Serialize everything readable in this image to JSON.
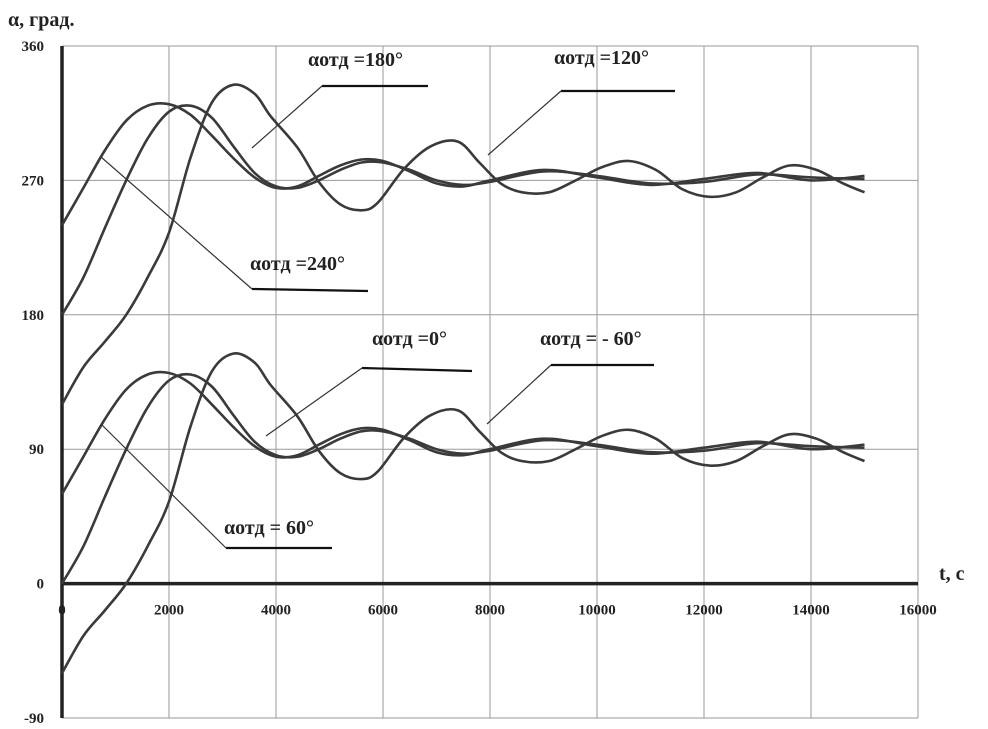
{
  "chart_data": {
    "type": "line",
    "title": "",
    "xlabel": "t, с",
    "ylabel": "α, град.",
    "xlim": [
      0,
      16000
    ],
    "ylim": [
      -90,
      360
    ],
    "xticks": [
      0,
      2000,
      4000,
      6000,
      8000,
      10000,
      12000,
      14000,
      16000
    ],
    "yticks": [
      -90,
      0,
      90,
      180,
      270,
      360
    ],
    "xtick_labels": [
      "0",
      "2000",
      "4000",
      "6000",
      "8000",
      "10000",
      "12000",
      "14000",
      "16000"
    ],
    "ytick_labels": [
      "-90",
      "0",
      "90",
      "180",
      "270",
      "360"
    ],
    "grid": true,
    "legend": "none",
    "series": [
      {
        "x": [
          0,
          400,
          800,
          1200,
          1600,
          2000,
          2400,
          2800,
          3200,
          3600,
          4000,
          4400,
          4800,
          5200,
          5600,
          6000,
          6500,
          7000,
          7500,
          8000,
          9000,
          10000,
          11000,
          12000,
          13000,
          14000,
          15000
        ],
        "y": [
          240,
          265,
          290,
          310,
          320,
          321,
          314,
          300,
          285,
          272,
          265,
          266,
          273,
          280,
          284,
          283,
          276,
          268,
          266,
          270,
          277,
          272,
          267,
          271,
          275,
          270,
          273
        ]
      },
      {
        "x": [
          0,
          400,
          800,
          1200,
          1600,
          2000,
          2400,
          2800,
          3200,
          3600,
          4000,
          4400,
          4800,
          5200,
          5600,
          6000,
          6500,
          7000,
          7500,
          8000,
          9000,
          10000,
          11000,
          12000,
          13000,
          14000,
          15000
        ],
        "y": [
          180,
          205,
          238,
          270,
          298,
          316,
          320,
          312,
          293,
          275,
          266,
          265,
          270,
          277,
          282,
          282,
          277,
          270,
          267,
          269,
          276,
          273,
          268,
          269,
          274,
          272,
          271
        ]
      },
      {
        "x": [
          0,
          400,
          800,
          1200,
          1600,
          2000,
          2400,
          2800,
          3200,
          3600,
          3900,
          4400,
          4800,
          5200,
          5600,
          5900,
          6400,
          6900,
          7400,
          7800,
          8200,
          8600,
          9100,
          9600,
          10100,
          10600,
          11100,
          11600,
          12100,
          12600,
          13100,
          13600,
          14100,
          14600,
          15000
        ],
        "y": [
          120,
          145,
          162,
          180,
          205,
          235,
          285,
          322,
          334,
          328,
          313,
          292,
          269,
          254,
          250,
          255,
          278,
          293,
          296,
          282,
          268,
          262,
          262,
          270,
          279,
          283,
          277,
          264,
          259,
          262,
          272,
          280,
          277,
          268,
          262
        ]
      },
      {
        "x": [
          0,
          400,
          800,
          1200,
          1600,
          2000,
          2400,
          2800,
          3200,
          3600,
          4000,
          4400,
          4800,
          5200,
          5600,
          6000,
          6500,
          7000,
          7500,
          8000,
          9000,
          10000,
          11000,
          12000,
          13000,
          14000,
          15000
        ],
        "y": [
          60,
          85,
          110,
          130,
          140,
          141,
          134,
          120,
          105,
          92,
          85,
          86,
          93,
          100,
          104,
          103,
          96,
          88,
          86,
          90,
          97,
          92,
          87,
          91,
          95,
          90,
          93
        ]
      },
      {
        "x": [
          0,
          400,
          800,
          1200,
          1600,
          2000,
          2400,
          2800,
          3200,
          3600,
          4000,
          4400,
          4800,
          5200,
          5600,
          6000,
          6500,
          7000,
          7500,
          8000,
          9000,
          10000,
          11000,
          12000,
          13000,
          14000,
          15000
        ],
        "y": [
          0,
          25,
          58,
          90,
          118,
          136,
          140,
          132,
          113,
          95,
          86,
          85,
          90,
          97,
          102,
          102,
          97,
          90,
          87,
          89,
          96,
          93,
          88,
          89,
          94,
          92,
          91
        ]
      },
      {
        "x": [
          0,
          400,
          800,
          1200,
          1600,
          2000,
          2400,
          2800,
          3200,
          3600,
          3900,
          4400,
          4800,
          5200,
          5600,
          5900,
          6400,
          6900,
          7400,
          7800,
          8200,
          8600,
          9100,
          9600,
          10100,
          10600,
          11100,
          11600,
          12100,
          12600,
          13100,
          13600,
          14100,
          14600,
          15000
        ],
        "y": [
          -60,
          -35,
          -18,
          0,
          25,
          55,
          105,
          142,
          154,
          148,
          133,
          112,
          89,
          74,
          70,
          75,
          98,
          113,
          116,
          102,
          88,
          82,
          82,
          90,
          99,
          103,
          97,
          84,
          79,
          82,
          92,
          100,
          97,
          88,
          82
        ]
      }
    ],
    "annotations": [
      {
        "text": "αотд =180°",
        "x": 6900,
        "y": 333
      },
      {
        "text": "αотд =120°",
        "x": 11500,
        "y": 329
      },
      {
        "text": "αотд =240°",
        "x": 5800,
        "y": 195
      },
      {
        "text": "αотд =0°",
        "x": 7700,
        "y": 146
      },
      {
        "text": "αотд = - 60°",
        "x": 11000,
        "y": 146
      },
      {
        "text": "αотд = 60°",
        "x": 5100,
        "y": 22
      }
    ]
  }
}
